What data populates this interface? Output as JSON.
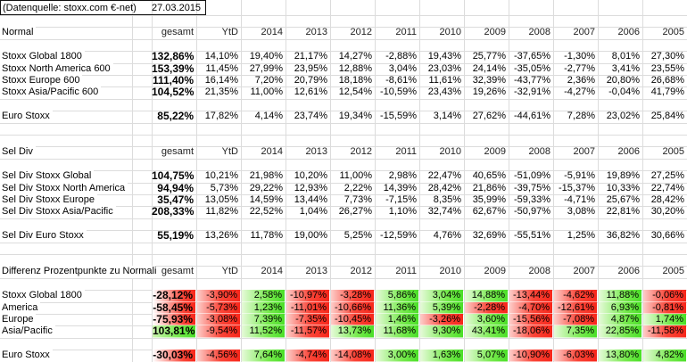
{
  "header": {
    "source": "(Datenquelle: stoxx.com €-net)",
    "date": "27.03.2015"
  },
  "columns": [
    "gesamt",
    "YtD",
    "2014",
    "2013",
    "2012",
    "2011",
    "2010",
    "2009",
    "2008",
    "2007",
    "2006",
    "2005"
  ],
  "sections": [
    {
      "title": "Normal",
      "colored": false,
      "rows": [
        {
          "label": "Stoxx Global 1800",
          "values": [
            "132,86%",
            "14,10%",
            "19,40%",
            "21,17%",
            "14,27%",
            "-2,88%",
            "19,43%",
            "25,77%",
            "-37,65%",
            "-1,30%",
            "8,01%",
            "27,30%"
          ]
        },
        {
          "label": "Stoxx North America 600",
          "values": [
            "153,39%",
            "11,45%",
            "27,99%",
            "23,95%",
            "12,88%",
            "3,04%",
            "23,03%",
            "24,14%",
            "-35,05%",
            "-2,77%",
            "3,41%",
            "23,55%"
          ]
        },
        {
          "label": "Stoxx Europe 600",
          "values": [
            "111,40%",
            "16,14%",
            "7,20%",
            "20,79%",
            "18,18%",
            "-8,61%",
            "11,61%",
            "32,39%",
            "-43,77%",
            "2,36%",
            "20,80%",
            "26,68%"
          ]
        },
        {
          "label": "Stoxx Asia/Pacific 600",
          "values": [
            "104,52%",
            "21,35%",
            "11,00%",
            "12,61%",
            "12,54%",
            "-10,59%",
            "23,43%",
            "19,26%",
            "-32,91%",
            "-4,27%",
            "-0,04%",
            "41,79%"
          ]
        },
        {
          "label": "Euro Stoxx",
          "values": [
            "85,22%",
            "17,82%",
            "4,14%",
            "23,74%",
            "19,34%",
            "-15,59%",
            "3,14%",
            "27,62%",
            "-44,61%",
            "7,28%",
            "23,02%",
            "25,84%"
          ]
        }
      ]
    },
    {
      "title": "Sel Div",
      "colored": false,
      "rows": [
        {
          "label": "Sel Div Stoxx Global",
          "values": [
            "104,75%",
            "10,21%",
            "21,98%",
            "10,20%",
            "11,00%",
            "2,98%",
            "22,47%",
            "40,65%",
            "-51,09%",
            "-5,91%",
            "19,89%",
            "27,25%"
          ]
        },
        {
          "label": "Sel Div Stoxx North America",
          "values": [
            "94,94%",
            "5,73%",
            "29,22%",
            "12,93%",
            "2,22%",
            "14,39%",
            "28,42%",
            "21,86%",
            "-39,75%",
            "-15,37%",
            "10,33%",
            "22,74%"
          ]
        },
        {
          "label": "Sel Div Stoxx Europe",
          "values": [
            "35,47%",
            "13,05%",
            "14,59%",
            "13,44%",
            "7,73%",
            "-7,15%",
            "8,35%",
            "35,99%",
            "-59,33%",
            "-4,71%",
            "25,67%",
            "28,42%"
          ]
        },
        {
          "label": "Sel Div Stoxx Asia/Pacific",
          "values": [
            "208,33%",
            "11,82%",
            "22,52%",
            "1,04%",
            "26,27%",
            "1,10%",
            "32,74%",
            "62,67%",
            "-50,97%",
            "3,08%",
            "22,81%",
            "30,20%"
          ]
        },
        {
          "label": "Sel Div Euro Stoxx",
          "values": [
            "55,19%",
            "13,26%",
            "11,78%",
            "19,00%",
            "5,25%",
            "-12,59%",
            "4,76%",
            "32,69%",
            "-55,51%",
            "1,25%",
            "36,82%",
            "30,66%"
          ]
        }
      ]
    },
    {
      "title": "Differenz Prozentpunkte zu Normalindex",
      "colored": true,
      "rows": [
        {
          "label": "Stoxx Global 1800",
          "values": [
            "-28,12%",
            "-3,90%",
            "2,58%",
            "-10,97%",
            "-3,28%",
            "5,86%",
            "3,04%",
            "14,88%",
            "-13,44%",
            "-4,62%",
            "11,88%",
            "-0,06%"
          ]
        },
        {
          "label": "America",
          "values": [
            "-58,45%",
            "-5,73%",
            "1,23%",
            "-11,01%",
            "-10,66%",
            "11,36%",
            "5,39%",
            "-2,28%",
            "-4,70%",
            "-12,61%",
            "6,93%",
            "-0,81%"
          ]
        },
        {
          "label": "Europe",
          "values": [
            "-75,93%",
            "-3,08%",
            "7,39%",
            "-7,35%",
            "-10,45%",
            "1,46%",
            "-3,26%",
            "3,60%",
            "-15,56%",
            "-7,08%",
            "4,87%",
            "1,74%"
          ]
        },
        {
          "label": "Asia/Pacific",
          "values": [
            "103,81%",
            "-9,54%",
            "11,52%",
            "-11,57%",
            "13,73%",
            "11,68%",
            "9,30%",
            "43,41%",
            "-18,06%",
            "7,35%",
            "22,85%",
            "-11,58%"
          ]
        },
        {
          "label": "Euro Stoxx",
          "values": [
            "-30,03%",
            "-4,56%",
            "7,64%",
            "-4,74%",
            "-14,08%",
            "3,00%",
            "1,63%",
            "5,07%",
            "-10,90%",
            "-6,03%",
            "13,80%",
            "4,82%"
          ]
        }
      ]
    }
  ],
  "colors": {
    "negative_strong": "#f7271b",
    "negative_mid": "#fa4538",
    "negative_light": "#fdcdc9",
    "positive_strong": "#4bdf28",
    "positive_mid": "#77ea4e",
    "positive_light": "#e6fad9",
    "gridline": "#dcdcdc",
    "box_border": "#111111"
  }
}
